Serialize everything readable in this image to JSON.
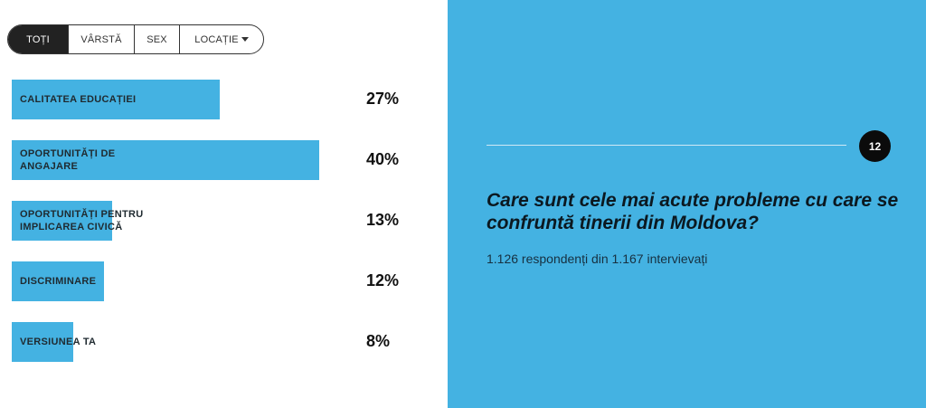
{
  "filters": {
    "tabs": [
      {
        "label": "TOȚI",
        "active": true
      },
      {
        "label": "VÂRSTĂ",
        "active": false
      },
      {
        "label": "SEX",
        "active": false
      },
      {
        "label": "LOCAȚIE",
        "active": false,
        "dropdown": true
      }
    ]
  },
  "colors": {
    "bar": "#44b2e2",
    "panel": "#44b2e2",
    "badge": "#0b0b0b"
  },
  "chart_data": {
    "type": "bar",
    "orientation": "horizontal",
    "categories": [
      "CALITATEA EDUCAȚIEI",
      "OPORTUNITĂȚI DE\nANGAJARE",
      "OPORTUNITĂȚI PENTRU\nIMPLICAREA CIVICĂ",
      "DISCRIMINARE",
      "VERSIUNEA TA"
    ],
    "values": [
      27,
      40,
      13,
      12,
      8
    ],
    "value_labels": [
      "27%",
      "40%",
      "13%",
      "12%",
      "8%"
    ],
    "unit": "%",
    "xlim": [
      0,
      40
    ]
  },
  "panel": {
    "number": "12",
    "question": "Care sunt cele mai acute probleme cu care se confruntă tinerii din Moldova?",
    "respondents": "1.126 respondenți din 1.167 intervievați"
  }
}
